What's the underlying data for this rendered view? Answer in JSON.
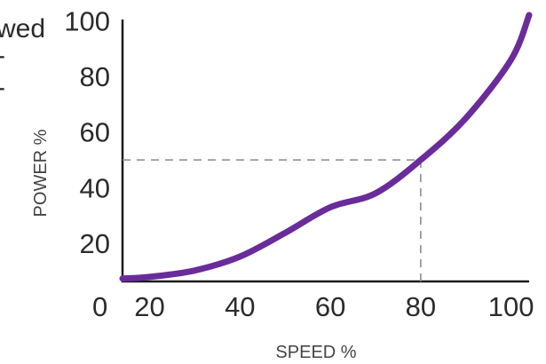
{
  "cropped_text": {
    "word": "wed"
  },
  "chart_data": {
    "type": "line",
    "title": "",
    "xlabel": "SPEED %",
    "ylabel": "POWER %",
    "x_ticks": [
      "20",
      "40",
      "60",
      "80",
      "100"
    ],
    "y_ticks": [
      "20",
      "40",
      "60",
      "80",
      "100"
    ],
    "origin_label": "0",
    "xlim": [
      14,
      104
    ],
    "ylim": [
      7,
      102
    ],
    "grid": false,
    "legend": "none",
    "series": [
      {
        "x": [
          14,
          20,
          30,
          40,
          50,
          60,
          70,
          80,
          90,
          100,
          104
        ],
        "y": [
          7.4,
          8.0,
          10.3,
          15.3,
          23.8,
          33.0,
          38.0,
          50.0,
          65.0,
          86.0,
          102.0
        ],
        "color": "#6a2c9a"
      }
    ],
    "annotations": [
      {
        "type": "dashed-reference",
        "x": 80,
        "y": 50
      }
    ]
  }
}
